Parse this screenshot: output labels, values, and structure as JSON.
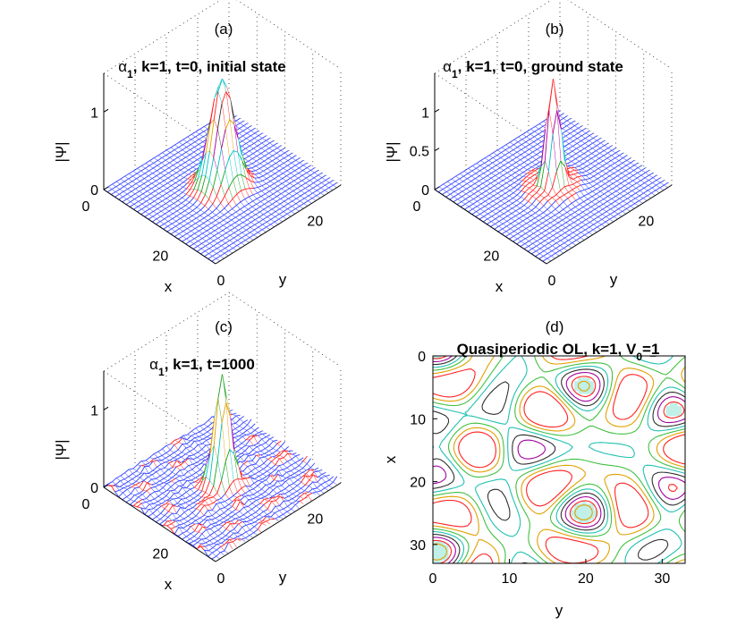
{
  "chart_data": [
    {
      "type": "surface",
      "panel_label": "(a)",
      "title_symbol": "α",
      "title_sub": "1",
      "title_rest": ", k=1, t=0, initial state",
      "zlabel": "|Ψ|",
      "xlabel": "x",
      "ylabel": "y",
      "z_ticks": [
        "1",
        "0"
      ],
      "x_ticks": [
        "0",
        "20"
      ],
      "y_ticks": [
        "0",
        "20"
      ],
      "z_range": [
        0,
        1.5
      ],
      "peak": 1.4,
      "profile": "gaussian",
      "colors": [
        "#3040ff",
        "#ff2020",
        "#20a020",
        "#00c0c0",
        "#a000a0",
        "#e0a000",
        "#303030"
      ]
    },
    {
      "type": "surface",
      "panel_label": "(b)",
      "title_symbol": "α",
      "title_sub": "1",
      "title_rest": ", k=1, t=0, ground state",
      "zlabel": "|Ψ|",
      "xlabel": "x",
      "ylabel": "y",
      "z_ticks": [
        "1",
        "0.5",
        "0"
      ],
      "x_ticks": [
        "0",
        "20"
      ],
      "y_ticks": [
        "0",
        "20"
      ],
      "z_range": [
        0,
        1.5
      ],
      "peak": 1.4,
      "profile": "narrow",
      "colors": [
        "#3040ff",
        "#ff2020",
        "#20a020",
        "#00c0c0",
        "#a000a0",
        "#e0a000",
        "#303030"
      ]
    },
    {
      "type": "surface",
      "panel_label": "(c)",
      "title_symbol": "α",
      "title_sub": "1",
      "title_rest": ", k=1, t=1000",
      "zlabel": "|Ψ|",
      "xlabel": "x",
      "ylabel": "y",
      "z_ticks": [
        "1",
        "0"
      ],
      "x_ticks": [
        "0",
        "20"
      ],
      "y_ticks": [
        "0",
        "20"
      ],
      "z_range": [
        0,
        1.5
      ],
      "peak": 1.4,
      "profile": "noisy",
      "colors": [
        "#3040ff",
        "#ff2020",
        "#20a020",
        "#00c0c0",
        "#a000a0",
        "#e0a000",
        "#303030"
      ]
    },
    {
      "type": "contour",
      "panel_label": "(d)",
      "title_main": "Quasiperiodic OL, k=1, V",
      "title_sub": "0",
      "title_rest": "=1",
      "xlabel": "y",
      "ylabel": "x",
      "x_ticks": [
        0,
        10,
        20,
        30
      ],
      "y_ticks": [
        0,
        10,
        20,
        30
      ],
      "xlim": [
        0,
        33
      ],
      "ylim": [
        0,
        33
      ],
      "y_reversed": true,
      "colors": [
        "#ff2020",
        "#e0a000",
        "#40c040",
        "#20c0b0",
        "#303030",
        "#a000a0"
      ],
      "fill_color": "#c0f0e8"
    }
  ]
}
